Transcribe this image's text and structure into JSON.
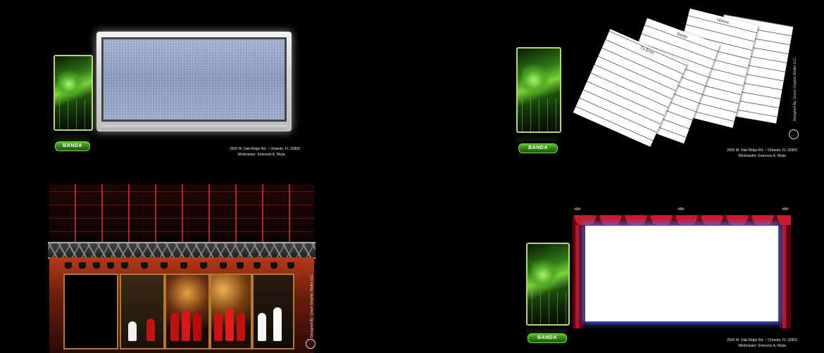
{
  "panels": {
    "top_left": {
      "banda_label": "BANDA",
      "footer_line1": "2500 W. Oak Ridge Rd. ~ Orlando, FL 32809",
      "footer_line2": "Webmaster: Emerson A. Mejia"
    },
    "top_right": {
      "banda_label": "BANDA",
      "footer_line1": "2500 W. Oak Ridge Rd. ~ Orlando, FL 32809",
      "footer_line2": "Webmaster: Emerson A. Mejia",
      "designed_by": "Designed By: Grace Graphic Studio LLC.",
      "sheet_titles": [
        "Tu Eres",
        "Santo",
        "Himno"
      ]
    },
    "bottom_left": {
      "designed_by": "Designed By: Grace Graphic Studio LLC."
    },
    "bottom_right": {
      "banda_label": "BANDA",
      "footer_line1": "2500 W. Oak Ridge Rd. ~ Orlando, FL 32809",
      "footer_line2": "Webmaster: Emerson A. Mejia"
    }
  },
  "colors": {
    "background": "#000000",
    "banda_green": "#3f9a1a",
    "tv_silver": "#d0d0d0",
    "curtain_red": "#b3142a",
    "screen_glow": "#5078ff"
  }
}
